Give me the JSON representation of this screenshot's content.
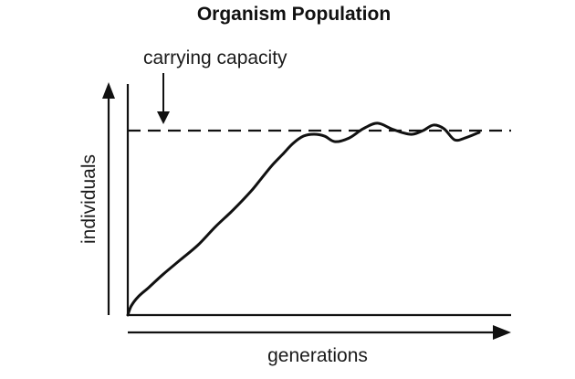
{
  "chart_data": {
    "type": "line",
    "title": "Organism Population",
    "xlabel": "generations",
    "ylabel": "individuals",
    "annotation": "carrying capacity",
    "show_ticks": false,
    "grid": false,
    "xlim": [
      0,
      100
    ],
    "ylim": [
      0,
      100
    ],
    "carrying_capacity": 100,
    "series": [
      {
        "x": [
          0,
          1,
          3,
          6,
          10,
          15,
          20,
          25,
          30,
          35,
          38,
          41,
          44,
          47,
          50,
          53,
          56,
          59,
          63,
          67,
          71,
          75,
          78,
          81,
          84,
          87,
          90,
          93,
          96,
          100
        ],
        "y": [
          0,
          5,
          10,
          15,
          22,
          30,
          38,
          48,
          57,
          67,
          74,
          81,
          87,
          93,
          97,
          98,
          97,
          94,
          96,
          101,
          104,
          101,
          99,
          98,
          100,
          103,
          101,
          95,
          96,
          99
        ]
      }
    ],
    "colors": {
      "line": "#111111",
      "axes": "#111111",
      "reference_line": "#111111"
    }
  }
}
